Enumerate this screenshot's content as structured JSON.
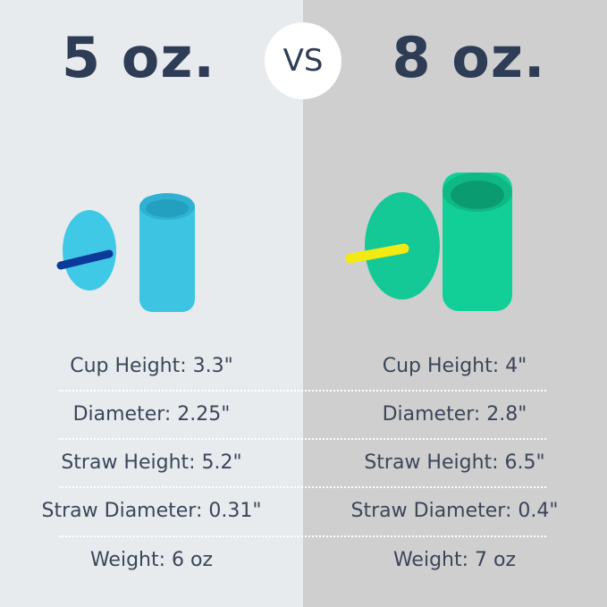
{
  "left": {
    "title": "5 oz.",
    "cup_color": "#3fc8e4",
    "straw_color": "#0d3a9a",
    "specs": [
      "Cup Height: 3.3\"",
      "Diameter: 2.25\"",
      "Straw Height: 5.2\"",
      "Straw Diameter: 0.31\"",
      "Weight: 6 oz"
    ]
  },
  "right": {
    "title": "8 oz.",
    "cup_color": "#12cf98",
    "straw_color": "#f2ea12",
    "specs": [
      "Cup Height: 4\"",
      "Diameter: 2.8\"",
      "Straw Height: 6.5\"",
      "Straw Diameter: 0.4\"",
      "Weight: 7 oz"
    ]
  },
  "vs_label": "VS",
  "colors": {
    "heading": "#2e3d55",
    "left_bg": "#e8ebee",
    "right_bg": "#cfcfcf"
  }
}
